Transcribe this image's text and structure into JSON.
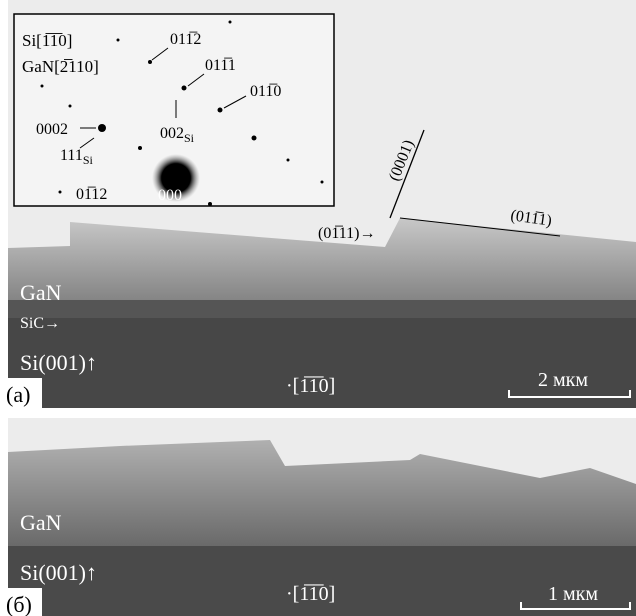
{
  "panel_a": {
    "inset": {
      "zone_si": "Si[1̅1̅0]",
      "zone_gan": "GaN[2̅110]",
      "spots": [
        "011̅2",
        "011̅1",
        "011̅0",
        "0002",
        "01̅12",
        "000"
      ],
      "si_spots": [
        {
          "text": "002",
          "sub": "Si"
        },
        {
          "text": "111",
          "sub": "Si"
        }
      ]
    },
    "facets": [
      "(0001)",
      "(01̅11)→",
      "(011̅1)"
    ],
    "layers": [
      "GaN",
      "SiC→",
      "Si(001)↑"
    ],
    "label": "(a)",
    "direction": "·[1̅1̅0]",
    "scale": "2 мкм"
  },
  "panel_b": {
    "layers": [
      "GaN",
      "Si(001)↑"
    ],
    "label": "(б)",
    "direction": "·[1̅1̅0]",
    "scale": "1 мкм"
  }
}
